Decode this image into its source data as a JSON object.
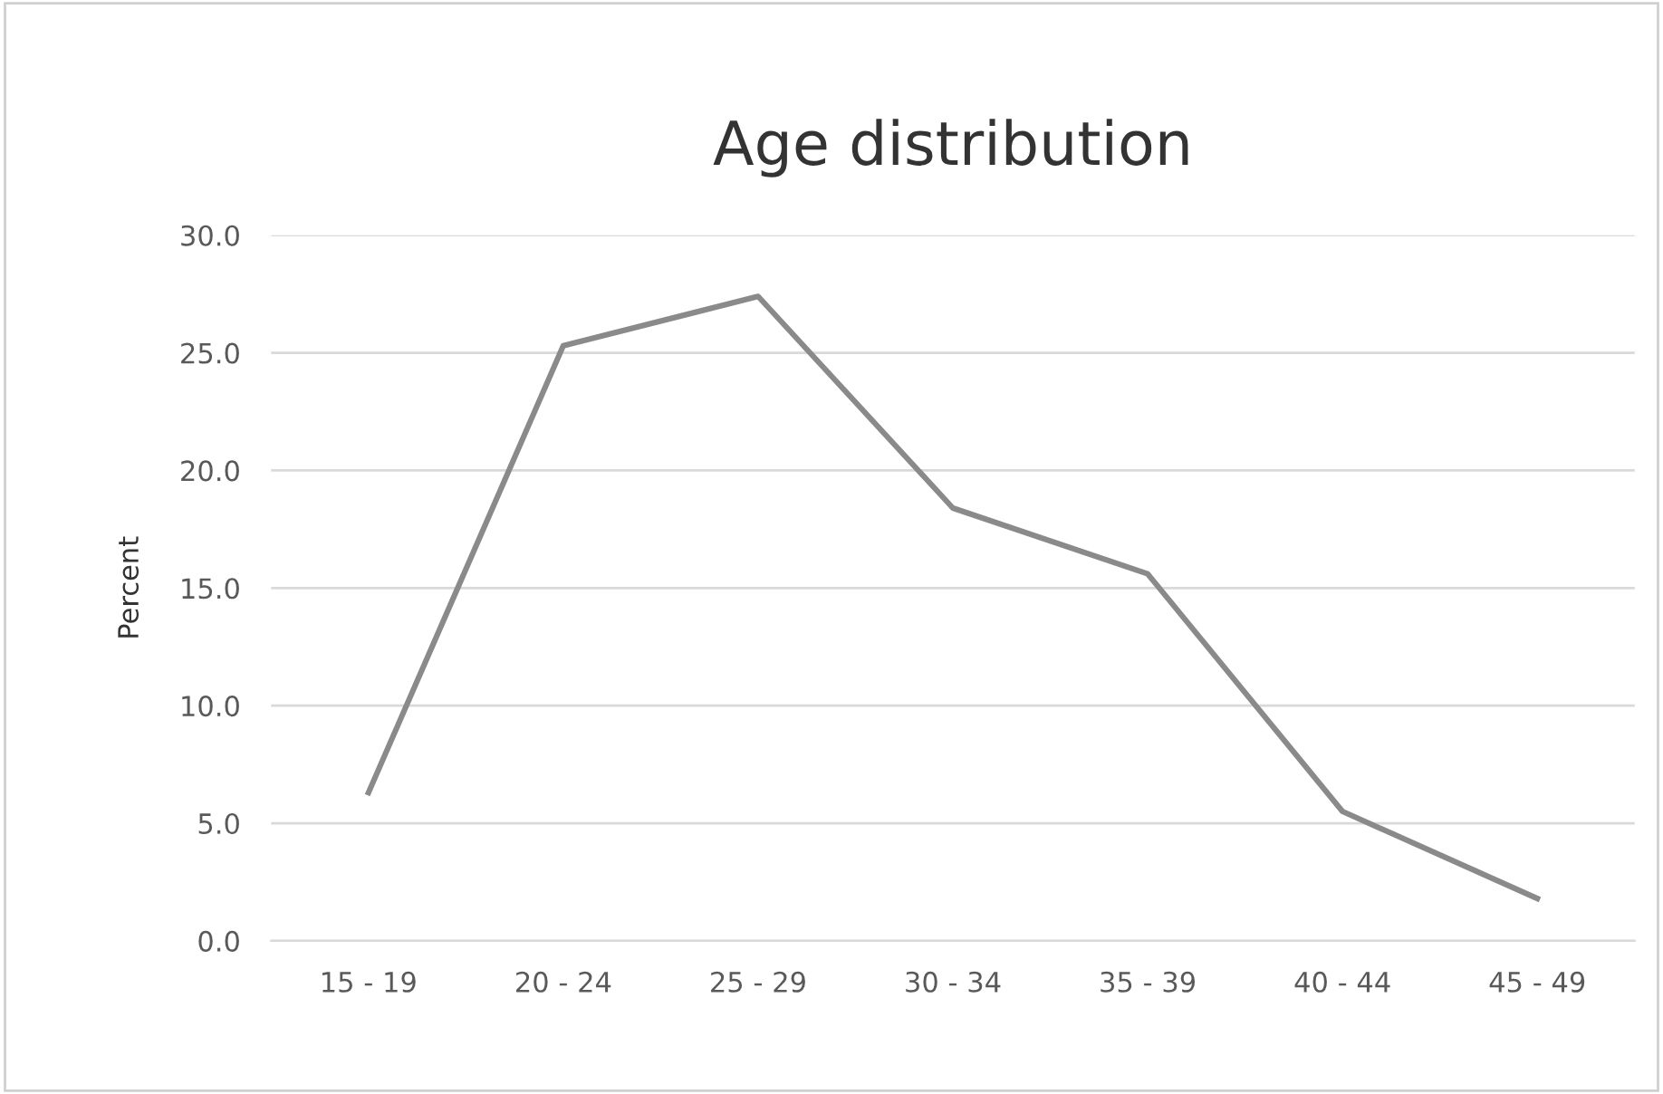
{
  "chart_data": {
    "type": "line",
    "title": "Age distribution",
    "ylabel": "Percent",
    "categories": [
      "15 - 19",
      "20 - 24",
      "25 - 29",
      "30 - 34",
      "35 - 39",
      "40 - 44",
      "45 - 49"
    ],
    "series": [
      {
        "color": "#8a8a8a",
        "values": [
          6.3,
          25.3,
          27.4,
          18.4,
          15.6,
          5.5,
          1.8
        ]
      }
    ],
    "ylim": [
      0,
      30
    ],
    "yticks": [
      {
        "value": 0,
        "label": "0.0"
      },
      {
        "value": 5,
        "label": "5.0"
      },
      {
        "value": 10,
        "label": "10.0"
      },
      {
        "value": 15,
        "label": "15.0"
      },
      {
        "value": 20,
        "label": "20.0"
      },
      {
        "value": 25,
        "label": "25.0"
      },
      {
        "value": 30,
        "label": "30.0"
      }
    ],
    "grid": "y",
    "legend": false,
    "marker": "none",
    "line_style": "solid"
  }
}
